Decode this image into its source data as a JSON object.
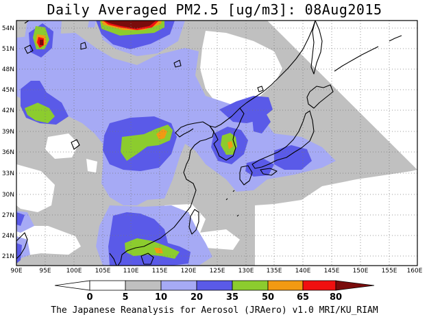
{
  "title": "Daily Averaged PM2.5 [ug/m3]: 08Aug2015",
  "credit": "The Japanese Reanalysis for Aerosol (JRAero) v1.0 MRI/KU_RIAM",
  "lat_labels": [
    "54N",
    "51N",
    "48N",
    "45N",
    "42N",
    "39N",
    "36N",
    "33N",
    "30N",
    "27N",
    "24N",
    "21N"
  ],
  "lon_labels": [
    "90E",
    "95E",
    "100E",
    "105E",
    "110E",
    "115E",
    "120E",
    "125E",
    "130E",
    "135E",
    "140E",
    "145E",
    "150E",
    "155E",
    "160E"
  ],
  "colorbar": {
    "ticks": [
      "0",
      "5",
      "10",
      "20",
      "35",
      "50",
      "65",
      "80"
    ],
    "colors": [
      "#ffffff",
      "#ffffff",
      "#c0c0c0",
      "#a6aaf5",
      "#5a5ae8",
      "#8ccc2e",
      "#f29a12",
      "#f01010",
      "#7a0c0c"
    ]
  },
  "colors": {
    "background": "#ffffff",
    "level_5_10": "#c0c0c0",
    "level_10_20": "#a6aaf5",
    "level_20_35": "#5a5ae8",
    "level_35_50": "#8ccc2e",
    "level_50_65": "#f29a12",
    "level_65_80": "#f01010",
    "level_80_plus": "#7a0c0c"
  }
}
